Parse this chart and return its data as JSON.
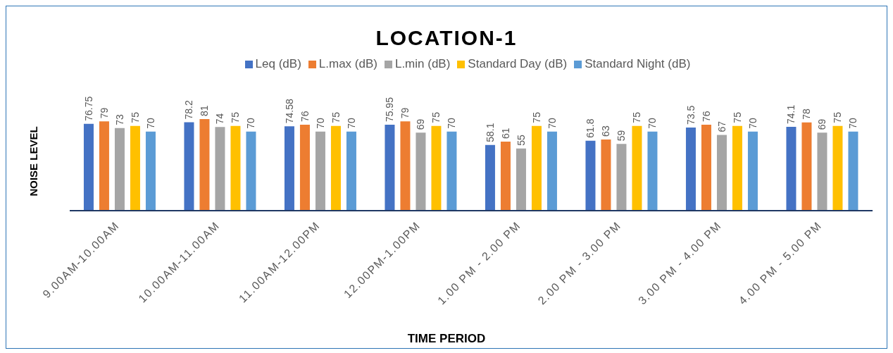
{
  "chart_data": {
    "type": "bar",
    "title": "LOCATION-1",
    "xlabel": "TIME PERIOD",
    "ylabel": "NOISE LEVEL",
    "categories": [
      "9.00AM-10.00AM",
      "10.00AM-11.00AM",
      "11.00AM-12.00PM",
      "12.00PM-1.00PM",
      "1.00 PM - 2.00 PM",
      "2.00 PM - 3.00 PM",
      "3.00 PM - 4.00 PM",
      "4.00 PM - 5.00 PM"
    ],
    "series": [
      {
        "name": "Leq (dB)",
        "color": "#4472c4",
        "values": [
          76.75,
          78.2,
          74.58,
          75.95,
          58.1,
          61.8,
          73.5,
          74.1
        ]
      },
      {
        "name": "L.max (dB)",
        "color": "#ed7d31",
        "values": [
          79,
          81,
          76,
          79,
          61,
          63,
          76,
          78
        ]
      },
      {
        "name": "L.min (dB)",
        "color": "#a5a5a5",
        "values": [
          73,
          74,
          70,
          69,
          55,
          59,
          67,
          69
        ]
      },
      {
        "name": "Standard Day (dB)",
        "color": "#ffc000",
        "values": [
          75,
          75,
          75,
          75,
          75,
          75,
          75,
          75
        ]
      },
      {
        "name": "Standard Night (dB)",
        "color": "#5b9bd5",
        "values": [
          70,
          70,
          70,
          70,
          70,
          70,
          70,
          70
        ]
      }
    ],
    "data_labels": true,
    "grid": false,
    "legend": "top"
  }
}
